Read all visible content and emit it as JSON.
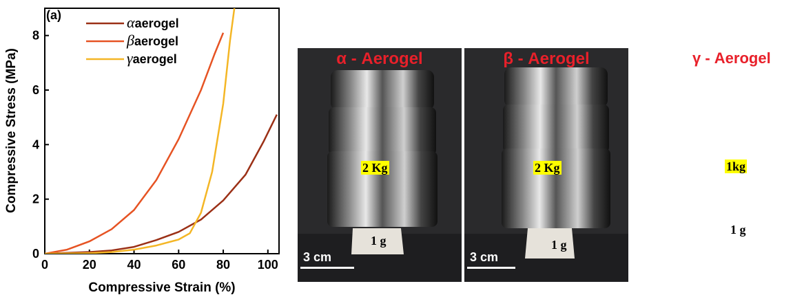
{
  "chart_data": {
    "type": "line",
    "panel_label": "(a)",
    "xlabel": "Compressive Strain (%)",
    "ylabel": "Compressive Stress (MPa)",
    "xlim": [
      0,
      105
    ],
    "ylim": [
      0,
      9
    ],
    "xticks": [
      0,
      20,
      40,
      60,
      80,
      100
    ],
    "yticks": [
      0,
      2,
      4,
      6,
      8
    ],
    "legend_position": "top-left",
    "series": [
      {
        "name": "αaerogel",
        "greek": "α",
        "label": "aerogel",
        "color": "#9b3016",
        "points": [
          [
            0,
            0
          ],
          [
            10,
            0.03
          ],
          [
            20,
            0.06
          ],
          [
            30,
            0.12
          ],
          [
            40,
            0.25
          ],
          [
            50,
            0.5
          ],
          [
            60,
            0.8
          ],
          [
            70,
            1.25
          ],
          [
            80,
            1.95
          ],
          [
            90,
            2.9
          ],
          [
            98,
            4.1
          ],
          [
            104,
            5.1
          ]
        ]
      },
      {
        "name": "βaerogel",
        "greek": "β",
        "label": "aerogel",
        "color": "#e65323",
        "points": [
          [
            0,
            0
          ],
          [
            10,
            0.15
          ],
          [
            20,
            0.45
          ],
          [
            30,
            0.9
          ],
          [
            40,
            1.6
          ],
          [
            50,
            2.7
          ],
          [
            60,
            4.2
          ],
          [
            70,
            6.0
          ],
          [
            76,
            7.3
          ],
          [
            80,
            8.1
          ]
        ]
      },
      {
        "name": "γaerogel",
        "greek": "γ",
        "label": "aerogel",
        "color": "#f4b625",
        "points": [
          [
            0,
            0
          ],
          [
            20,
            0.02
          ],
          [
            30,
            0.06
          ],
          [
            40,
            0.15
          ],
          [
            50,
            0.3
          ],
          [
            60,
            0.52
          ],
          [
            65,
            0.75
          ],
          [
            70,
            1.5
          ],
          [
            75,
            3.0
          ],
          [
            80,
            5.5
          ],
          [
            83,
            7.8
          ],
          [
            85,
            9.0
          ]
        ]
      }
    ]
  },
  "photos": {
    "alpha": {
      "title": "α - Aerogel",
      "weight": "2 Kg",
      "sample": "1 g",
      "scale": "3 cm"
    },
    "beta": {
      "title": "β - Aerogel",
      "weight": "2 Kg",
      "sample": "1 g",
      "scale": "3 cm"
    },
    "gamma": {
      "title": "γ - Aerogel",
      "weight": "1kg",
      "sample": "1 g"
    }
  }
}
